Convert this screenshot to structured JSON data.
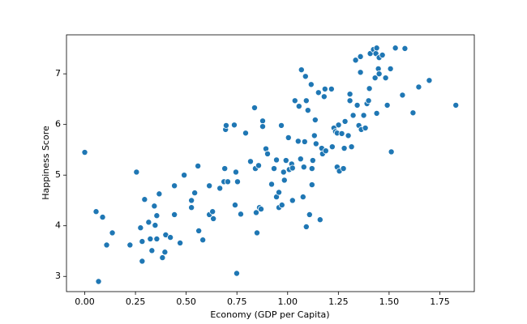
{
  "chart_data": {
    "type": "scatter",
    "xlabel": "Economy (GDP per Capita)",
    "ylabel": "Happiness Score",
    "color": "#1f77b4",
    "xlim": [
      -0.09,
      1.92
    ],
    "ylim": [
      2.7,
      7.77
    ],
    "xticks": [
      {
        "value": 0,
        "label": "0.00"
      },
      {
        "value": 0.25,
        "label": "0.25"
      },
      {
        "value": 0.5,
        "label": "0.50"
      },
      {
        "value": 0.75,
        "label": "0.75"
      },
      {
        "value": 1,
        "label": "1.00"
      },
      {
        "value": 1.25,
        "label": "1.25"
      },
      {
        "value": 1.5,
        "label": "1.50"
      },
      {
        "value": 1.75,
        "label": "1.75"
      }
    ],
    "yticks": [
      3,
      4,
      5,
      6,
      7
    ],
    "grid": false,
    "x": [
      0,
      0.056,
      0.068,
      0.088,
      0.108,
      0.136,
      0.223,
      0.255,
      0.275,
      0.283,
      0.283,
      0.295,
      0.315,
      0.323,
      0.331,
      0.343,
      0.347,
      0.355,
      0.355,
      0.367,
      0.383,
      0.395,
      0.399,
      0.422,
      0.442,
      0.442,
      0.47,
      0.49,
      0.526,
      0.526,
      0.542,
      0.558,
      0.562,
      0.582,
      0.614,
      0.614,
      0.63,
      0.634,
      0.666,
      0.686,
      0.69,
      0.694,
      0.697,
      0.705,
      0.737,
      0.741,
      0.745,
      0.749,
      0.753,
      0.769,
      0.793,
      0.817,
      0.837,
      0.841,
      0.845,
      0.849,
      0.857,
      0.861,
      0.869,
      0.877,
      0.877,
      0.893,
      0.901,
      0.921,
      0.933,
      0.945,
      0.945,
      0.957,
      0.957,
      0.969,
      0.972,
      0.98,
      0.984,
      0.992,
      1.004,
      1.008,
      1.02,
      1.024,
      1.024,
      1.036,
      1.052,
      1.056,
      1.064,
      1.068,
      1.076,
      1.08,
      1.084,
      1.088,
      1.092,
      1.092,
      1.1,
      1.108,
      1.116,
      1.12,
      1.12,
      1.124,
      1.132,
      1.136,
      1.14,
      1.152,
      1.16,
      1.168,
      1.172,
      1.18,
      1.184,
      1.188,
      1.216,
      1.22,
      1.228,
      1.236,
      1.244,
      1.244,
      1.251,
      1.255,
      1.267,
      1.275,
      1.279,
      1.283,
      1.299,
      1.307,
      1.307,
      1.315,
      1.323,
      1.335,
      1.343,
      1.351,
      1.359,
      1.359,
      1.363,
      1.375,
      1.383,
      1.391,
      1.399,
      1.403,
      1.407,
      1.423,
      1.431,
      1.435,
      1.439,
      1.439,
      1.447,
      1.451,
      1.451,
      1.467,
      1.483,
      1.491,
      1.507,
      1.511,
      1.531,
      1.566,
      1.578,
      1.618,
      1.646,
      1.698,
      1.829
    ],
    "values": [
      5.45,
      4.28,
      2.9,
      4.17,
      3.62,
      3.86,
      3.62,
      5.06,
      3.96,
      3.69,
      3.3,
      4.52,
      4.07,
      3.74,
      3.51,
      4.39,
      4.01,
      3.74,
      4.2,
      4.63,
      3.37,
      3.48,
      3.82,
      3.77,
      4.79,
      4.22,
      3.66,
      5,
      4.5,
      4.36,
      4.65,
      5.18,
      3.9,
      3.72,
      4.79,
      4.22,
      4.28,
      4.14,
      4.74,
      4.87,
      5.13,
      5.9,
      5.98,
      4.87,
      5.99,
      4.41,
      5.06,
      3.06,
      4.87,
      4.23,
      5.83,
      5.27,
      6.33,
      5.13,
      4.26,
      3.86,
      5.19,
      4.36,
      4.33,
      6.07,
      5.96,
      5.52,
      5.42,
      4.82,
      5.13,
      5.3,
      4.57,
      4.66,
      4.36,
      5.98,
      4.41,
      5.06,
      4.9,
      5.29,
      5.74,
      5.11,
      5.22,
      4.5,
      5.14,
      6.47,
      5.67,
      6.36,
      5.32,
      7.08,
      4.57,
      5.16,
      5.66,
      6.95,
      6.47,
      3.98,
      6.28,
      4.22,
      6.79,
      4.81,
      5.13,
      5.29,
      5.78,
      6.09,
      5.62,
      6.63,
      4.12,
      5.53,
      5.42,
      6.55,
      6.7,
      5.48,
      6.7,
      5.56,
      5.93,
      5.86,
      5.16,
      5.83,
      5.99,
      5.08,
      5.82,
      5.13,
      5.53,
      6.06,
      5.78,
      6.47,
      6.6,
      5.56,
      6.18,
      7.27,
      6.38,
      5.98,
      7.34,
      7.03,
      5.9,
      6.18,
      5.93,
      6.41,
      6.47,
      6.71,
      7.4,
      7.48,
      6.92,
      7.4,
      7.51,
      6.22,
      7.1,
      7.32,
      7,
      7.37,
      6.92,
      6.38,
      7.1,
      5.46,
      7.51,
      6.58,
      7.5,
      6.23,
      6.74,
      6.87,
      6.38
    ]
  }
}
